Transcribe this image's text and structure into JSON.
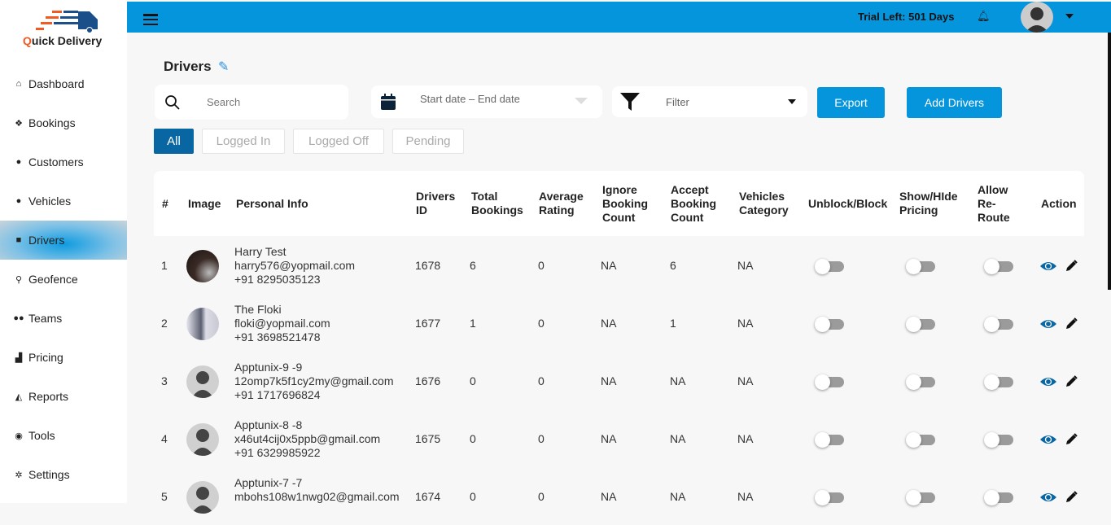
{
  "brand": {
    "name_q": "Q",
    "name_rest": "uick Delivery",
    "accent": "#f15a22",
    "primary": "#0595dc"
  },
  "sidebar": {
    "items": [
      {
        "label": "Dashboard",
        "icon": "home-icon",
        "glyph": "⌂"
      },
      {
        "label": "Bookings",
        "icon": "dropbox-icon",
        "glyph": "❖"
      },
      {
        "label": "Customers",
        "icon": "user-icon",
        "glyph": "●"
      },
      {
        "label": "Vehicles",
        "icon": "user-icon",
        "glyph": "●"
      },
      {
        "label": "Drivers",
        "icon": "driver-icon",
        "glyph": "■",
        "active": true
      },
      {
        "label": "Geofence",
        "icon": "map-marker-icon",
        "glyph": "⚲"
      },
      {
        "label": "Teams",
        "icon": "users-icon",
        "glyph": "●●"
      },
      {
        "label": "Pricing",
        "icon": "pricing-icon",
        "glyph": "▟"
      },
      {
        "label": "Reports",
        "icon": "area-chart-icon",
        "glyph": "◭"
      },
      {
        "label": "Tools",
        "icon": "tools-icon",
        "glyph": "◉"
      },
      {
        "label": "Settings",
        "icon": "gear-icon",
        "glyph": "✲"
      }
    ]
  },
  "topbar": {
    "trial": "Trial Left: 501 Days"
  },
  "page": {
    "title": "Drivers",
    "search_placeholder": "Search",
    "date_placeholder": "Start date – End date",
    "filter_placeholder": "Filter",
    "export_label": "Export",
    "add_label": "Add Drivers",
    "tabs": [
      "All",
      "Logged In",
      "Logged Off",
      "Pending"
    ],
    "active_tab": "All"
  },
  "table": {
    "headers": [
      "#",
      "Image",
      "Personal Info",
      "Drivers ID",
      "Total Bookings",
      "Average Rating",
      "Ignore Booking Count",
      "Accept Booking Count",
      "Vehicles Category",
      "Unblock/Block",
      "Show/HIde Pricing",
      "Allow Re-Route",
      "Action"
    ],
    "rows": [
      {
        "n": "1",
        "name": "Harry Test",
        "email": "harry576@yopmail.com",
        "phone": "+91 8295035123",
        "id": "1678",
        "total": "6",
        "rating": "0",
        "ignore": "NA",
        "accept": "6",
        "category": "NA",
        "blocked": false,
        "show_pricing": false,
        "reroute": false
      },
      {
        "n": "2",
        "name": "The Floki",
        "email": "floki@yopmail.com",
        "phone": "+91 3698521478",
        "id": "1677",
        "total": "1",
        "rating": "0",
        "ignore": "NA",
        "accept": "1",
        "category": "NA",
        "blocked": false,
        "show_pricing": false,
        "reroute": false
      },
      {
        "n": "3",
        "name": "Apptunix-9 -9",
        "email": "12omp7k5f1cy2my@gmail.com",
        "phone": "+91 1717696824",
        "id": "1676",
        "total": "0",
        "rating": "0",
        "ignore": "NA",
        "accept": "NA",
        "category": "NA",
        "blocked": false,
        "show_pricing": false,
        "reroute": false
      },
      {
        "n": "4",
        "name": "Apptunix-8 -8",
        "email": "x46ut4cij0x5ppb@gmail.com",
        "phone": "+91 6329985922",
        "id": "1675",
        "total": "0",
        "rating": "0",
        "ignore": "NA",
        "accept": "NA",
        "category": "NA",
        "blocked": false,
        "show_pricing": false,
        "reroute": false
      },
      {
        "n": "5",
        "name": "Apptunix-7 -7",
        "email": "mbohs108w1nwg02@gmail.com",
        "phone": "",
        "id": "1674",
        "total": "0",
        "rating": "0",
        "ignore": "NA",
        "accept": "NA",
        "category": "NA",
        "blocked": false,
        "show_pricing": false,
        "reroute": false
      }
    ]
  }
}
